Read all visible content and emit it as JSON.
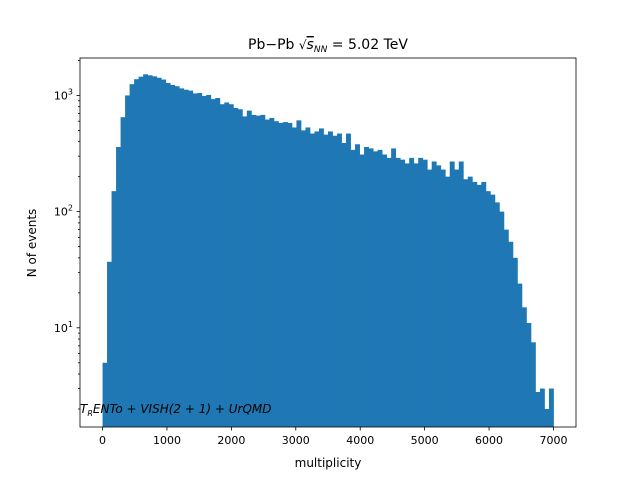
{
  "chart_data": {
    "type": "histogram",
    "title_main": "Pb−Pb ",
    "title_sqrt": "√",
    "title_s": "s",
    "title_sub": "NN",
    "title_tail": " = 5.02 TeV",
    "xlabel": "multiplicity",
    "ylabel": "N of events",
    "yscale": "log",
    "xlim": [
      -350,
      7350
    ],
    "ylim": [
      1.4,
      2100
    ],
    "x_ticks": [
      0,
      1000,
      2000,
      3000,
      4000,
      5000,
      6000,
      7000
    ],
    "x_tick_labels": [
      "0",
      "1000",
      "2000",
      "3000",
      "4000",
      "5000",
      "6000",
      "7000"
    ],
    "y_ticks": [
      {
        "value": 10,
        "base": "10",
        "exp": "1"
      },
      {
        "value": 100,
        "base": "10",
        "exp": "2"
      },
      {
        "value": 1000,
        "base": "10",
        "exp": "3"
      }
    ],
    "color": "#1f77b4",
    "bin_start": 0,
    "bin_width": 70,
    "counts": [
      5,
      37,
      150,
      360,
      650,
      1000,
      1250,
      1380,
      1450,
      1520,
      1490,
      1460,
      1420,
      1370,
      1280,
      1230,
      1200,
      1150,
      1120,
      1100,
      1040,
      1050,
      990,
      1010,
      930,
      950,
      840,
      870,
      840,
      780,
      760,
      660,
      740,
      680,
      670,
      680,
      620,
      640,
      600,
      580,
      590,
      580,
      530,
      610,
      500,
      530,
      470,
      490,
      520,
      460,
      490,
      450,
      470,
      390,
      470,
      340,
      380,
      310,
      360,
      350,
      330,
      340,
      310,
      290,
      350,
      290,
      280,
      260,
      290,
      260,
      290,
      280,
      230,
      270,
      250,
      230,
      200,
      270,
      230,
      270,
      190,
      200,
      180,
      170,
      180,
      150,
      140,
      120,
      100,
      70,
      55,
      40,
      24,
      15,
      11,
      7.5,
      2.8,
      3,
      2,
      3
    ],
    "annotation": "T_R ENTo + VISH(2+1) + UrQMD",
    "annotation_parts": [
      "T",
      "R",
      "ENTo + VISH(2 + 1) + UrQMD"
    ]
  }
}
